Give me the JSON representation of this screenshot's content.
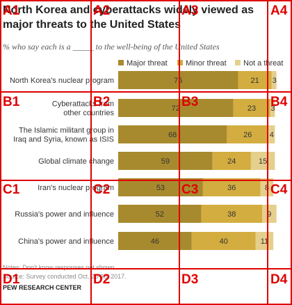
{
  "chart_data": {
    "type": "bar",
    "orientation": "horizontal",
    "stacked": true,
    "title": "North Korea and cyberattacks widely viewed as major threats to the United States",
    "subtitle": "% who say each is a _____ to the well-being of the United States",
    "categories": [
      "North Korea's nuclear program",
      "Cyberattacks from other countries",
      "The Islamic militant group in Iraq and Syria, known as ISIS",
      "Global climate change",
      "Iran's nuclear program",
      "Russia's power and influence",
      "China's power and influence"
    ],
    "category_lines": [
      [
        "North Korea's nuclear program"
      ],
      [
        "Cyberattacks from",
        "other countries"
      ],
      [
        "The Islamic militant group in",
        "Iraq and Syria, known as ISIS"
      ],
      [
        "Global climate change"
      ],
      [
        "Iran's nuclear program"
      ],
      [
        "Russia's power and influence"
      ],
      [
        "China's power and influence"
      ]
    ],
    "series": [
      {
        "name": "Major threat",
        "color": "#a88a2e",
        "values": [
          75,
          72,
          68,
          59,
          53,
          52,
          46
        ]
      },
      {
        "name": "Minor threat",
        "color": "#d3ad40",
        "values": [
          21,
          23,
          26,
          24,
          36,
          38,
          40
        ]
      },
      {
        "name": "Not a threat",
        "color": "#e5cf8c",
        "values": [
          3,
          3,
          4,
          15,
          8,
          9,
          11
        ]
      }
    ],
    "legend_position": "top",
    "xlim": [
      0,
      100
    ]
  },
  "notes": {
    "line1": "Notes: Don't know responses not shown.",
    "line2": "Source: Survey conducted Oct. 25-30, 2017."
  },
  "source_org": "PEW RESEARCH CENTER",
  "grid_overlay": {
    "labels": [
      "A1",
      "A2",
      "A3",
      "A4",
      "B1",
      "B2",
      "B3",
      "B4",
      "C1",
      "C2",
      "C3",
      "C4",
      "D1",
      "D2",
      "D3",
      "D4"
    ]
  }
}
